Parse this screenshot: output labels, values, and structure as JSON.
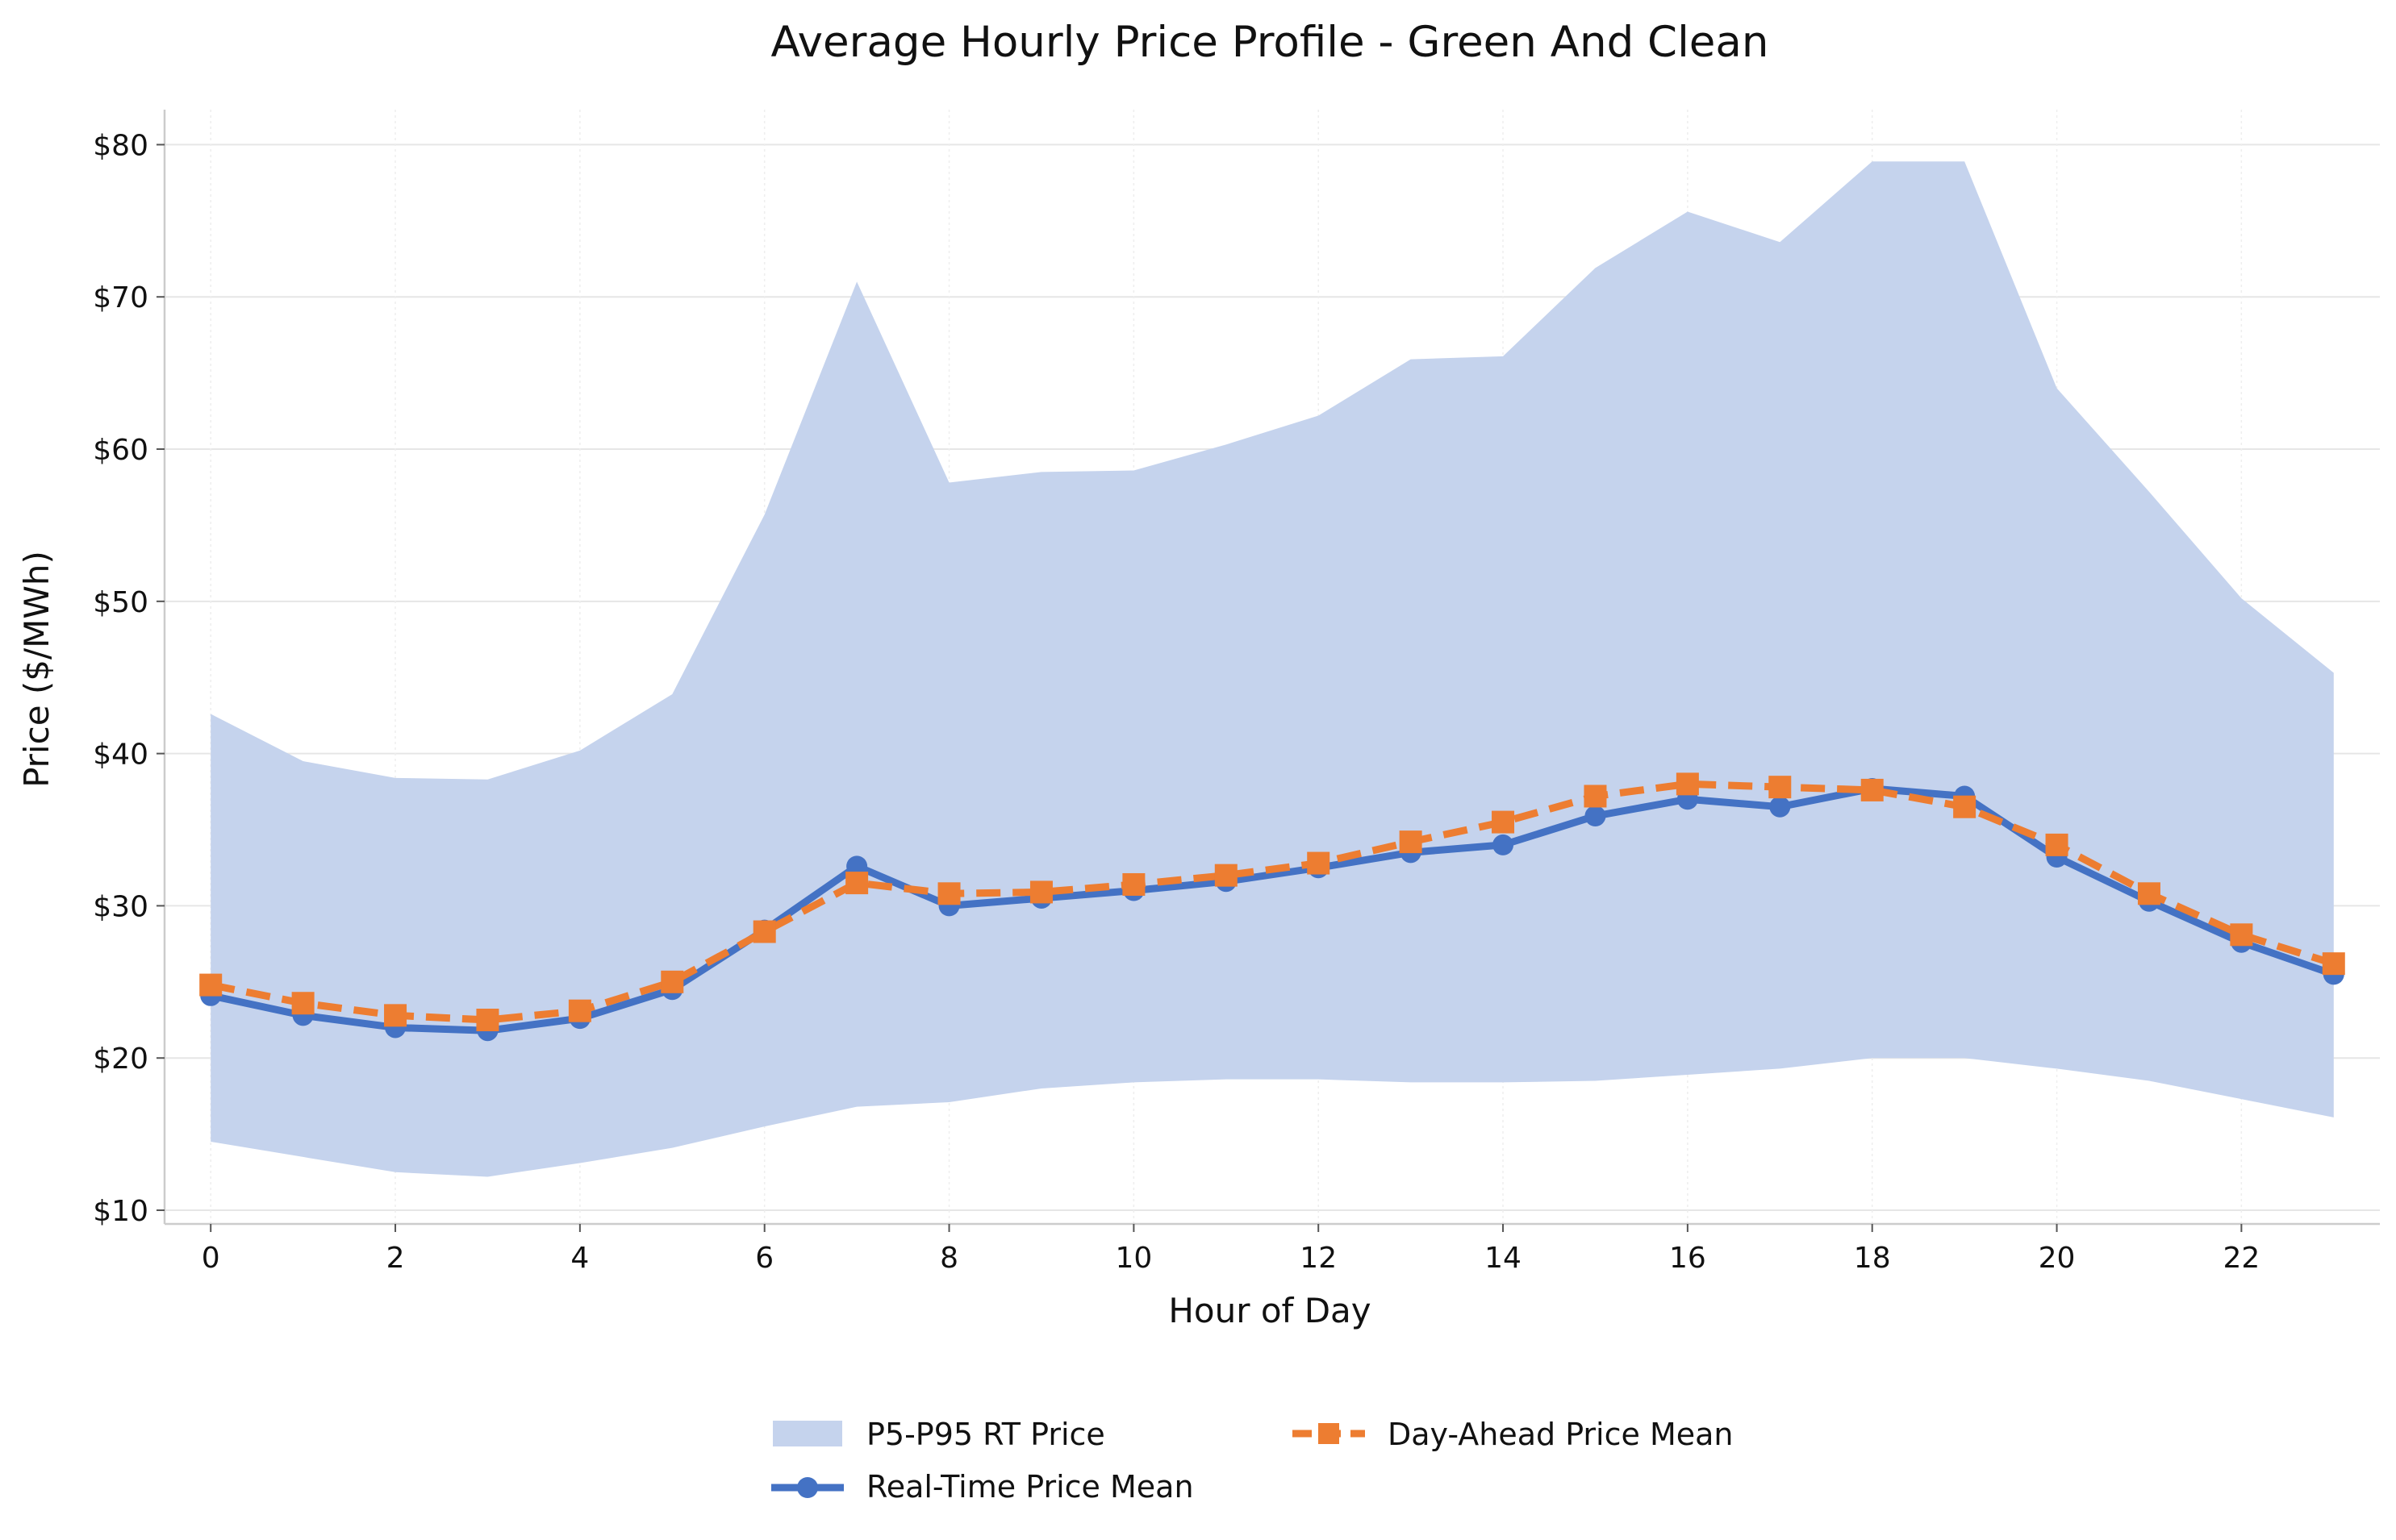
{
  "chart_data": {
    "type": "line",
    "title": "Average Hourly Price Profile - Green And Clean",
    "xlabel": "Hour of Day",
    "ylabel": "Price ($/MWh)",
    "x": [
      0,
      1,
      2,
      3,
      4,
      5,
      6,
      7,
      8,
      9,
      10,
      11,
      12,
      13,
      14,
      15,
      16,
      17,
      18,
      19,
      20,
      21,
      22,
      23
    ],
    "xlim": [
      -0.5,
      23.5
    ],
    "ylim": [
      9.1,
      82.3
    ],
    "xticks": [
      0,
      2,
      4,
      6,
      8,
      10,
      12,
      14,
      16,
      18,
      20,
      22
    ],
    "xtick_labels": [
      "0",
      "2",
      "4",
      "6",
      "8",
      "10",
      "12",
      "14",
      "16",
      "18",
      "20",
      "22"
    ],
    "yticks": [
      10,
      20,
      30,
      40,
      50,
      60,
      70,
      80
    ],
    "ytick_labels": [
      "$10",
      "$20",
      "$30",
      "$40",
      "$50",
      "$60",
      "$70",
      "$80"
    ],
    "grid": true,
    "legend_position": "bottom-center",
    "band": {
      "name": "P5-P95 RT Price",
      "color": "#c5d3ed",
      "lower": [
        14.5,
        13.5,
        12.5,
        12.2,
        13.1,
        14.1,
        15.5,
        16.8,
        17.1,
        18.0,
        18.4,
        18.6,
        18.6,
        18.4,
        18.4,
        18.5,
        18.9,
        19.3,
        20.0,
        20.0,
        19.3,
        18.5,
        17.3,
        16.1
      ],
      "upper": [
        42.6,
        39.5,
        38.4,
        38.3,
        40.2,
        43.9,
        55.7,
        71.0,
        57.8,
        58.5,
        58.6,
        60.3,
        62.2,
        65.9,
        66.1,
        71.9,
        75.6,
        73.6,
        78.9,
        78.9,
        64.0,
        57.2,
        50.2,
        45.3
      ]
    },
    "series": [
      {
        "name": "Real-Time Price Mean",
        "color": "#4472c4",
        "marker": "circle",
        "style": "solid",
        "values": [
          24.1,
          22.8,
          22.0,
          21.8,
          22.6,
          24.5,
          28.4,
          32.6,
          30.0,
          30.5,
          31.0,
          31.6,
          32.5,
          33.5,
          34.0,
          35.9,
          37.0,
          36.5,
          37.7,
          37.2,
          33.2,
          30.3,
          27.6,
          25.5
        ]
      },
      {
        "name": "Day-Ahead Price Mean",
        "color": "#ed7d31",
        "marker": "square",
        "style": "dashed",
        "values": [
          24.8,
          23.6,
          22.8,
          22.5,
          23.1,
          25.0,
          28.3,
          31.5,
          30.8,
          30.9,
          31.4,
          32.0,
          32.8,
          34.2,
          35.5,
          37.2,
          38.0,
          37.8,
          37.6,
          36.5,
          34.0,
          30.8,
          28.1,
          26.2
        ]
      }
    ],
    "axis_color": "#cccccc",
    "grid_color": "#e6e6e6"
  }
}
